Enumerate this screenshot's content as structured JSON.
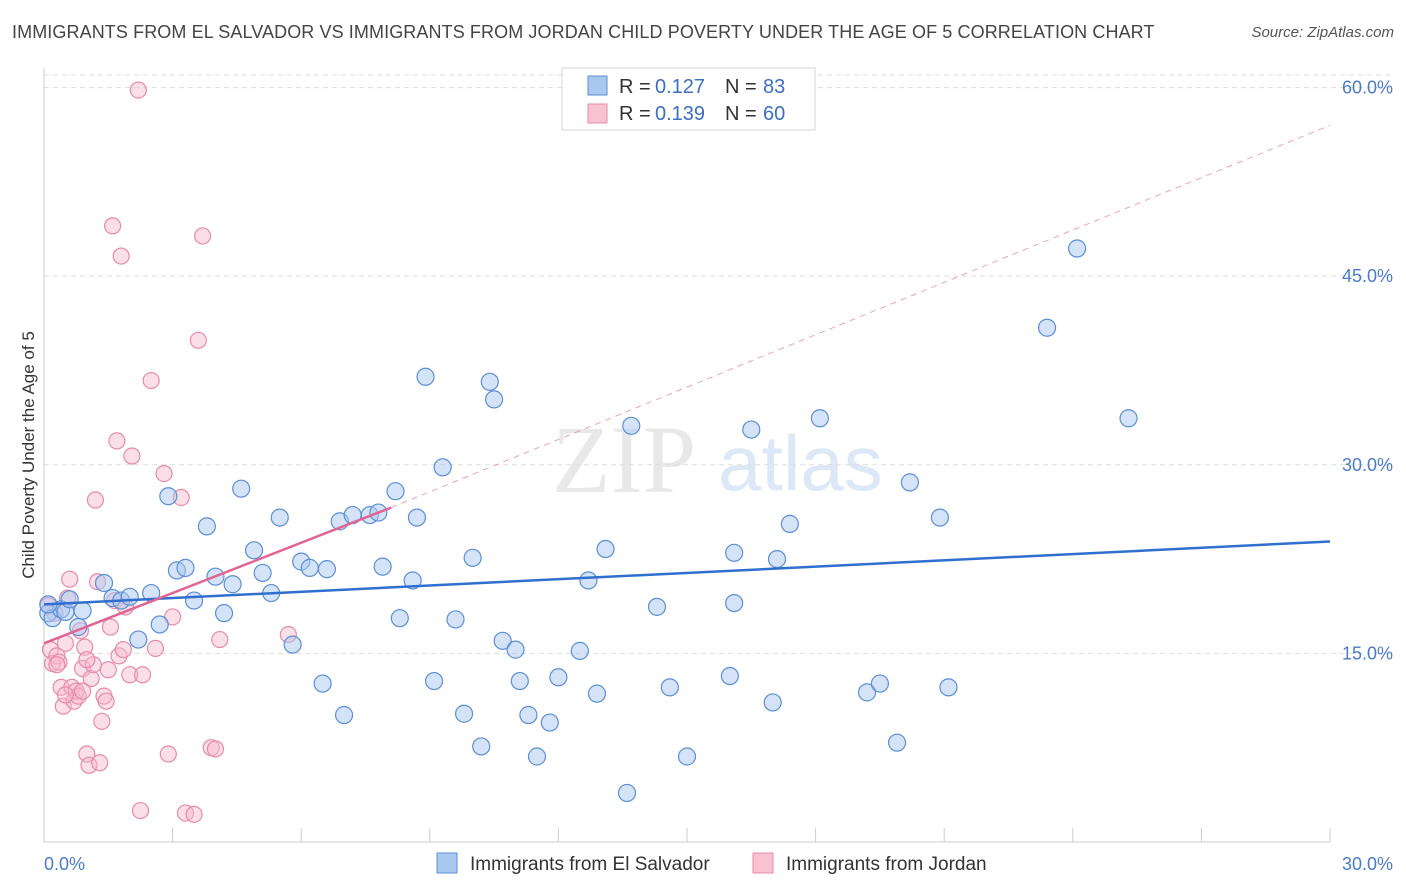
{
  "title": "IMMIGRANTS FROM EL SALVADOR VS IMMIGRANTS FROM JORDAN CHILD POVERTY UNDER THE AGE OF 5 CORRELATION CHART",
  "source": "Source: ZipAtlas.com",
  "watermark": {
    "zip": "ZIP",
    "atlas": "atlas"
  },
  "colors": {
    "blue_fill": "#a9c8ef",
    "blue_stroke": "#5b8fd6",
    "blue_line": "#2f6fce",
    "pink_fill": "#f7b8cb",
    "pink_stroke": "#e88aa8",
    "pink_line": "#e06595",
    "grid": "#dddddd",
    "tick_label": "#4a7cc7"
  },
  "legend": {
    "rows": [
      {
        "r_label": "R = ",
        "r_value": "0.127",
        "n_label": "N = ",
        "n_value": "83"
      },
      {
        "r_label": "R = ",
        "r_value": "0.139",
        "n_label": "N = ",
        "n_value": "60"
      }
    ]
  },
  "chart_data": {
    "type": "scatter",
    "title": "IMMIGRANTS FROM EL SALVADOR VS IMMIGRANTS FROM JORDAN CHILD POVERTY UNDER THE AGE OF 5 CORRELATION CHART",
    "xlabel": "",
    "ylabel": "Child Poverty Under the Age of 5",
    "xlim": [
      0,
      30
    ],
    "ylim": [
      0,
      61
    ],
    "x_tick_labels": [
      "0.0%",
      "30.0%"
    ],
    "y_ticks": [
      15,
      30,
      45,
      60
    ],
    "y_tick_labels": [
      "15.0%",
      "30.0%",
      "45.0%",
      "60.0%"
    ],
    "grid": true,
    "legend_position": "top-center",
    "series": [
      {
        "name": "Immigrants from El Salvador",
        "color": "#5b8fd6",
        "trend": {
          "x": [
            0,
            30
          ],
          "y": [
            18.9,
            23.9
          ],
          "style": "solid"
        },
        "points": [
          [
            0.1,
            18.2
          ],
          [
            0.2,
            17.8
          ],
          [
            0.4,
            18.5
          ],
          [
            0.5,
            18.3
          ],
          [
            0.6,
            19.3
          ],
          [
            0.8,
            17.1
          ],
          [
            0.9,
            18.4
          ],
          [
            1.4,
            20.6
          ],
          [
            1.6,
            19.4
          ],
          [
            1.8,
            19.2
          ],
          [
            2.0,
            19.5
          ],
          [
            2.2,
            16.1
          ],
          [
            2.5,
            19.8
          ],
          [
            2.7,
            17.3
          ],
          [
            2.9,
            27.5
          ],
          [
            3.1,
            21.6
          ],
          [
            3.3,
            21.8
          ],
          [
            3.5,
            19.2
          ],
          [
            3.8,
            25.1
          ],
          [
            4.0,
            21.1
          ],
          [
            4.2,
            18.2
          ],
          [
            4.4,
            20.5
          ],
          [
            4.6,
            28.1
          ],
          [
            4.9,
            23.2
          ],
          [
            5.1,
            21.4
          ],
          [
            5.3,
            19.8
          ],
          [
            5.5,
            25.8
          ],
          [
            5.8,
            15.7
          ],
          [
            6.0,
            22.3
          ],
          [
            6.2,
            21.8
          ],
          [
            6.5,
            12.6
          ],
          [
            6.6,
            21.7
          ],
          [
            6.9,
            25.5
          ],
          [
            7.0,
            10.1
          ],
          [
            7.2,
            26.0
          ],
          [
            7.6,
            26.0
          ],
          [
            7.8,
            26.2
          ],
          [
            7.9,
            21.9
          ],
          [
            8.2,
            27.9
          ],
          [
            8.3,
            17.8
          ],
          [
            8.6,
            20.8
          ],
          [
            8.7,
            25.8
          ],
          [
            8.9,
            37.0
          ],
          [
            9.1,
            12.8
          ],
          [
            9.3,
            29.8
          ],
          [
            9.6,
            17.7
          ],
          [
            9.8,
            10.2
          ],
          [
            10.0,
            22.6
          ],
          [
            10.2,
            7.6
          ],
          [
            10.4,
            36.6
          ],
          [
            10.5,
            35.2
          ],
          [
            10.7,
            16.0
          ],
          [
            11.0,
            15.3
          ],
          [
            11.1,
            12.8
          ],
          [
            11.3,
            10.1
          ],
          [
            11.5,
            6.8
          ],
          [
            11.8,
            9.5
          ],
          [
            12.0,
            13.1
          ],
          [
            12.5,
            15.2
          ],
          [
            12.7,
            20.8
          ],
          [
            12.9,
            11.8
          ],
          [
            13.1,
            23.3
          ],
          [
            13.6,
            3.9
          ],
          [
            13.7,
            33.1
          ],
          [
            14.3,
            18.7
          ],
          [
            14.6,
            12.3
          ],
          [
            15.0,
            6.8
          ],
          [
            16.0,
            13.2
          ],
          [
            16.1,
            23.0
          ],
          [
            16.1,
            19.0
          ],
          [
            16.5,
            32.8
          ],
          [
            17.0,
            11.1
          ],
          [
            17.1,
            22.5
          ],
          [
            17.4,
            25.3
          ],
          [
            18.1,
            33.7
          ],
          [
            19.2,
            11.9
          ],
          [
            19.5,
            12.6
          ],
          [
            19.9,
            7.9
          ],
          [
            20.2,
            28.6
          ],
          [
            20.9,
            25.8
          ],
          [
            21.1,
            12.3
          ],
          [
            23.4,
            40.9
          ],
          [
            24.1,
            47.2
          ],
          [
            25.3,
            33.7
          ],
          [
            0.1,
            18.9
          ]
        ]
      },
      {
        "name": "Immigrants from Jordan",
        "color": "#e88aa8",
        "trend": {
          "x": [
            0,
            8.1
          ],
          "y": [
            15.8,
            26.6
          ],
          "style": "solid",
          "extension": {
            "x": [
              8.1,
              30
            ],
            "y": [
              26.6,
              57.0
            ],
            "style": "dashed"
          }
        },
        "points": [
          [
            0.1,
            18.8
          ],
          [
            0.15,
            15.3
          ],
          [
            0.2,
            14.2
          ],
          [
            0.25,
            18.2
          ],
          [
            0.3,
            14.8
          ],
          [
            0.35,
            14.3
          ],
          [
            0.4,
            12.3
          ],
          [
            0.45,
            10.8
          ],
          [
            0.5,
            15.8
          ],
          [
            0.55,
            19.4
          ],
          [
            0.6,
            20.9
          ],
          [
            0.65,
            12.3
          ],
          [
            0.7,
            11.2
          ],
          [
            0.75,
            12.0
          ],
          [
            0.8,
            11.6
          ],
          [
            0.85,
            16.8
          ],
          [
            0.9,
            13.8
          ],
          [
            0.95,
            15.5
          ],
          [
            1.0,
            7.0
          ],
          [
            1.05,
            6.1
          ],
          [
            1.1,
            13.0
          ],
          [
            1.15,
            14.1
          ],
          [
            1.2,
            27.2
          ],
          [
            1.25,
            20.7
          ],
          [
            1.3,
            6.3
          ],
          [
            1.35,
            9.6
          ],
          [
            1.4,
            11.6
          ],
          [
            1.45,
            11.2
          ],
          [
            1.5,
            13.7
          ],
          [
            1.55,
            17.1
          ],
          [
            1.6,
            49.0
          ],
          [
            1.65,
            19.2
          ],
          [
            1.7,
            31.9
          ],
          [
            1.75,
            14.8
          ],
          [
            1.8,
            46.6
          ],
          [
            1.85,
            15.3
          ],
          [
            1.9,
            18.7
          ],
          [
            2.0,
            13.3
          ],
          [
            2.05,
            30.7
          ],
          [
            2.2,
            59.8
          ],
          [
            2.25,
            2.5
          ],
          [
            2.3,
            13.3
          ],
          [
            2.5,
            36.7
          ],
          [
            2.6,
            15.4
          ],
          [
            2.8,
            29.3
          ],
          [
            2.9,
            7.0
          ],
          [
            3.0,
            17.9
          ],
          [
            3.2,
            27.4
          ],
          [
            3.3,
            2.3
          ],
          [
            3.5,
            2.2
          ],
          [
            3.6,
            39.9
          ],
          [
            3.7,
            48.2
          ],
          [
            3.9,
            7.5
          ],
          [
            4.0,
            7.4
          ],
          [
            4.1,
            16.1
          ],
          [
            5.7,
            16.5
          ],
          [
            1.0,
            14.5
          ],
          [
            0.5,
            11.7
          ],
          [
            0.9,
            12.0
          ],
          [
            0.3,
            14.1
          ]
        ]
      }
    ]
  }
}
